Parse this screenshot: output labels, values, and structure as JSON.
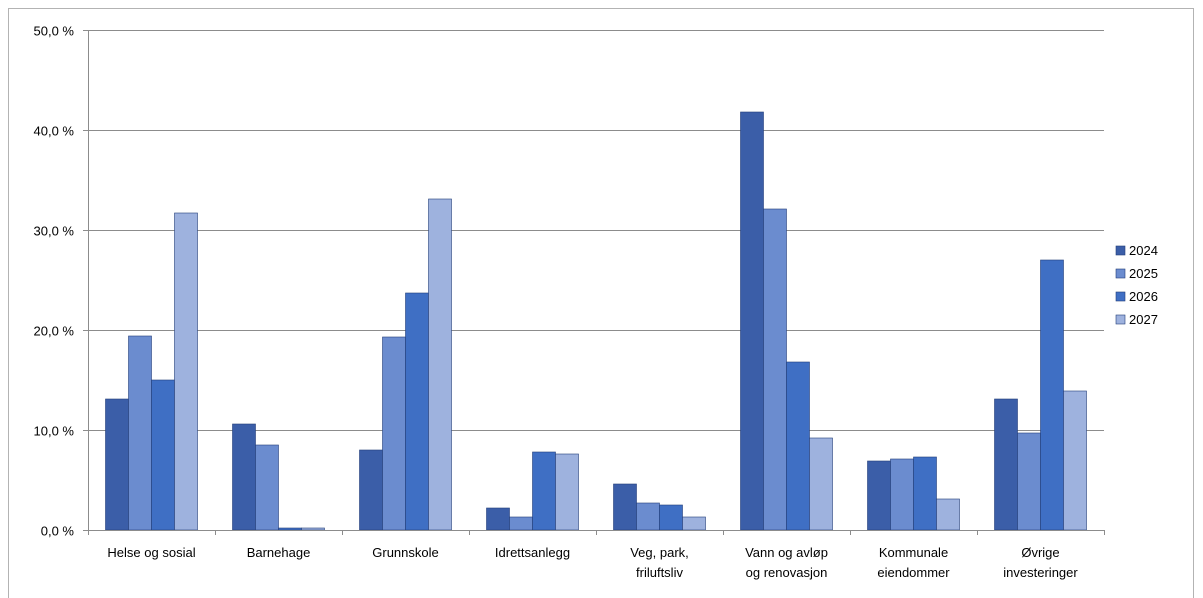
{
  "chart_data": {
    "type": "bar",
    "categories": [
      [
        "Helse og sosial"
      ],
      [
        "Barnehage"
      ],
      [
        "Grunnskole"
      ],
      [
        "Idrettsanlegg"
      ],
      [
        "Veg, park,",
        "friluftsliv"
      ],
      [
        "Vann og avløp",
        "og renovasjon"
      ],
      [
        "Kommunale",
        "eiendommer"
      ],
      [
        "Øvrige",
        "investeringer"
      ]
    ],
    "series": [
      {
        "name": "2024",
        "color": "#3b5ea8",
        "values": [
          13.1,
          10.6,
          8.0,
          2.2,
          4.6,
          41.8,
          6.9,
          13.1
        ]
      },
      {
        "name": "2025",
        "color": "#6b8ccf",
        "values": [
          19.4,
          8.5,
          19.3,
          1.3,
          2.7,
          32.1,
          7.1,
          9.7
        ]
      },
      {
        "name": "2026",
        "color": "#3f6fc4",
        "values": [
          15.0,
          0.2,
          23.7,
          7.8,
          2.5,
          16.8,
          7.3,
          27.0
        ]
      },
      {
        "name": "2027",
        "color": "#9eb2de",
        "values": [
          31.7,
          0.2,
          33.1,
          7.6,
          1.3,
          9.2,
          3.1,
          13.9
        ]
      }
    ],
    "yticks": [
      "0,0 %",
      "10,0 %",
      "20,0 %",
      "30,0 %",
      "40,0 %",
      "50,0 %"
    ],
    "ylim": [
      0,
      50
    ],
    "grid": true,
    "legend_position": "right",
    "title": "",
    "xlabel": "",
    "ylabel": ""
  }
}
